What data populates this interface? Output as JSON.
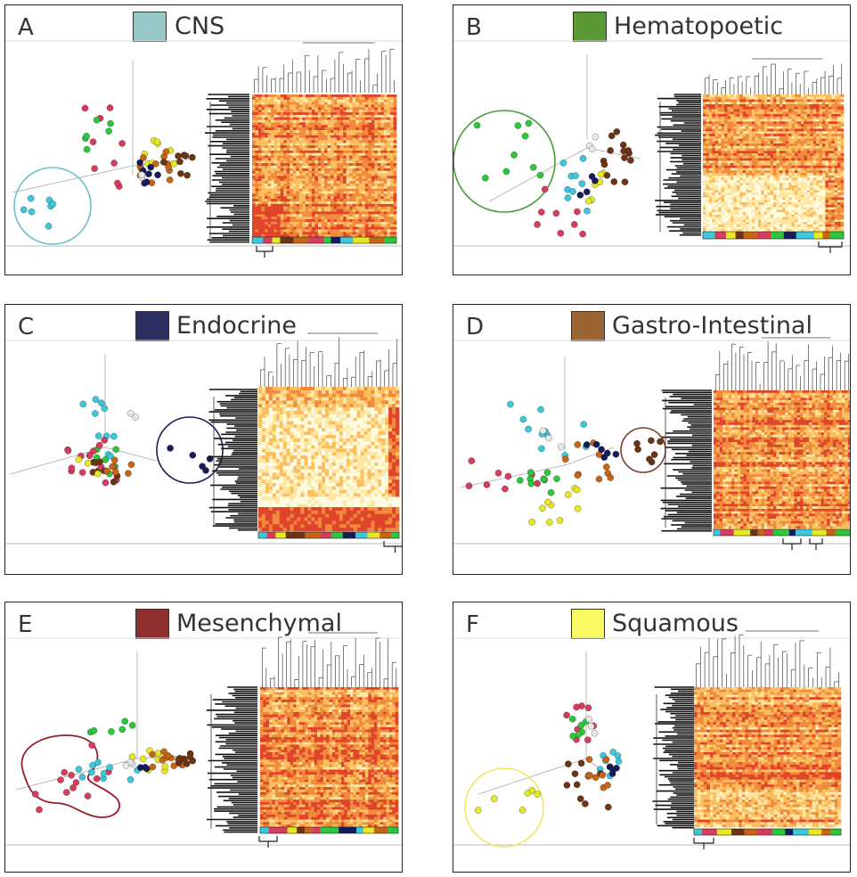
{
  "panels": [
    {
      "letter": "A",
      "title": "CNS",
      "color": "#96c8c8",
      "ring": "#6cc0c8"
    },
    {
      "letter": "B",
      "title": "Hematopoetic",
      "color": "#5a9a34",
      "ring": "#4a9a3c"
    },
    {
      "letter": "C",
      "title": "Endocrine",
      "color": "#2c3060",
      "ring": "#1c1c50"
    },
    {
      "letter": "D",
      "title": "Gastro-Intestinal",
      "color": "#9a6434",
      "ring": "#7a3c30"
    },
    {
      "letter": "E",
      "title": "Mesenchymal",
      "color": "#8e3030",
      "ring": "#981c30"
    },
    {
      "letter": "F",
      "title": "Squamous",
      "color": "#f8f860",
      "ring": "#f0e860"
    }
  ],
  "colors": {
    "cns": "#3cc8dc",
    "hematopoetic": "#2cc83c",
    "endocrine": "#141c5c",
    "gastro": "#6c3414",
    "mesenchymal": "#d83c5c",
    "squamous": "#e8e820",
    "other": "#c86414",
    "white": "#e8e8e8"
  }
}
